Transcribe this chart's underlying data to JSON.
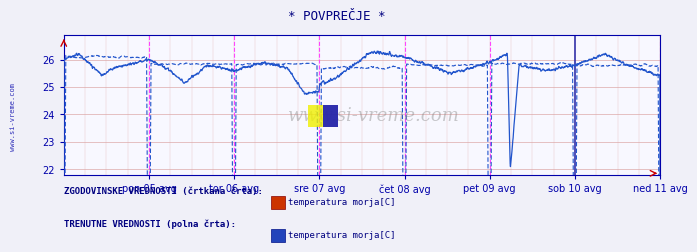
{
  "title": "* POVPREČJE *",
  "title_color": "#000080",
  "bg_color": "#f0f0f8",
  "plot_bg_color": "#f8f8ff",
  "ylim": [
    21.8,
    26.9
  ],
  "yticks": [
    22,
    23,
    24,
    25,
    26
  ],
  "n_points": 2017,
  "points_per_day": 288,
  "xlabel_ticks": [
    288,
    576,
    864,
    1152,
    1440,
    1728,
    2016
  ],
  "xlabel_labels": [
    "pon 05 avg",
    "tor 06 avg",
    "sre 07 avg",
    "čet 08 avg",
    "pet 09 avg",
    "sob 10 avg",
    "ned 11 avg"
  ],
  "grid_h_color": "#ddaaaa",
  "grid_v_color": "#ddaaaa",
  "day_line_color": "#ff44ff",
  "current_day_color": "#3333aa",
  "axis_color": "#0000aa",
  "tick_color": "#0000aa",
  "border_color": "#0000aa",
  "watermark": "www.si-vreme.com",
  "legend_label1": "ZGODOVINSKE VREDNOSTI (črtkana črta):",
  "legend_label2": "TRENUTNE VREDNOSTI (polna črta):",
  "legend_series1": "temperatura morja[C]",
  "legend_series2": "temperatura morja[C]",
  "legend_color1": "#cc3300",
  "legend_color2": "#2244bb",
  "line_color_dashed": "#2255cc",
  "line_color_solid": "#2255cc",
  "sidebar_text": "www.si-vreme.com",
  "sidebar_color": "#0000aa",
  "red_arrow_color": "#cc0000"
}
